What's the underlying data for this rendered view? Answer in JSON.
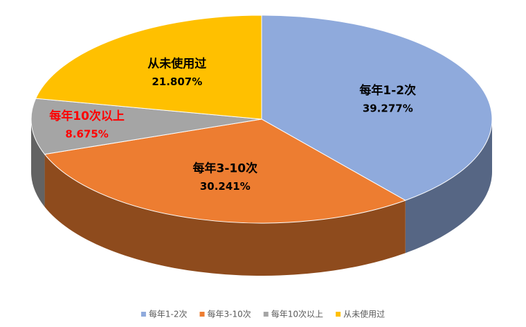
{
  "chart_data": {
    "type": "pie3d",
    "categories": [
      "每年1-2次",
      "每年3-10次",
      "每年10次以上",
      "从未使用过"
    ],
    "values": [
      39.277,
      30.241,
      8.675,
      21.807
    ],
    "value_labels": [
      "39.277%",
      "30.241%",
      "8.675%",
      "21.807%"
    ],
    "colors": [
      "#8faadc",
      "#ed7d31",
      "#a5a5a5",
      "#ffc000"
    ],
    "label_colors": [
      "#000000",
      "#000000",
      "#ff0000",
      "#000000"
    ],
    "legend": "bottom"
  }
}
